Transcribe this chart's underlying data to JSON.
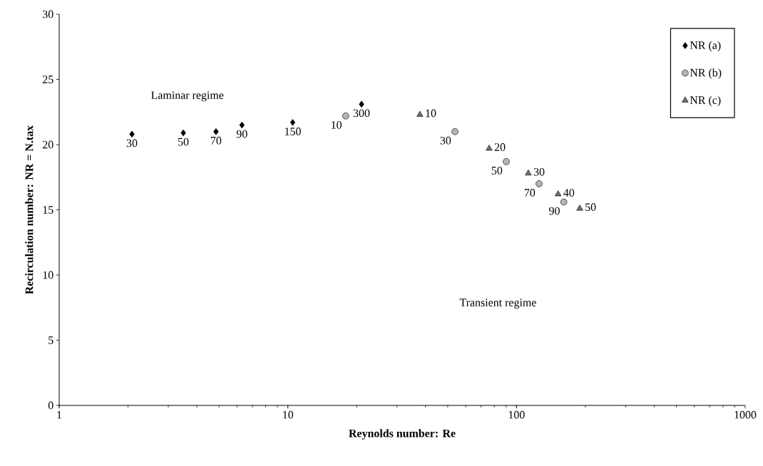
{
  "chart_data": {
    "type": "scatter",
    "xlabel": "Reynolds number: Re",
    "ylabel": "Recirculation number: NR = N.tax",
    "log": "x",
    "xlim": [
      1,
      1000
    ],
    "xticks": [
      1,
      10,
      100,
      1000
    ],
    "ylim": [
      0,
      30
    ],
    "yticks": [
      0,
      5,
      10,
      15,
      20,
      25,
      30
    ],
    "grid": false,
    "legend": "top right",
    "series": [
      {
        "name": "NR (a)",
        "color": "#000000",
        "marker": "diamond",
        "x": [
          2.08,
          3.49,
          4.85,
          6.3,
          10.5,
          21.0
        ],
        "values": [
          20.8,
          20.9,
          21.0,
          21.5,
          21.7,
          23.1
        ]
      },
      {
        "name": "NR (b)",
        "color": "#b4b4b4",
        "marker": "circle",
        "x": [
          17.9,
          53.8,
          90.2,
          125.5,
          161
        ],
        "values": [
          22.2,
          21.0,
          18.7,
          17.0,
          15.6
        ]
      },
      {
        "name": "NR (c)",
        "color": "#6e6e6e",
        "marker": "triangle",
        "x": [
          37.8,
          75.9,
          112.6,
          152,
          189
        ],
        "values": [
          22.3,
          19.7,
          17.8,
          16.2,
          15.1
        ]
      }
    ],
    "annotations": [
      "Laminar regime",
      "Transient regime",
      {
        "text": "30",
        "x": 2.08,
        "y": 20.8
      },
      {
        "text": "50",
        "x": 3.49,
        "y": 20.9
      },
      {
        "text": "70",
        "x": 4.85,
        "y": 21.0
      },
      {
        "text": "90",
        "x": 6.3,
        "y": 21.5
      },
      {
        "text": "150",
        "x": 10.5,
        "y": 21.7
      },
      {
        "text": "300",
        "x": 21.0,
        "y": 23.1
      },
      {
        "text": "10",
        "x": 17.9,
        "y": 22.2
      },
      {
        "text": "30",
        "x": 53.8,
        "y": 21.0
      },
      {
        "text": "50",
        "x": 90.2,
        "y": 18.7
      },
      {
        "text": "70",
        "x": 125.5,
        "y": 17.0
      },
      {
        "text": "90",
        "x": 161,
        "y": 15.6
      },
      {
        "text": "10",
        "x": 37.8,
        "y": 22.3
      },
      {
        "text": "20",
        "x": 75.9,
        "y": 19.7
      },
      {
        "text": "30",
        "x": 112.6,
        "y": 17.8
      },
      {
        "text": "40",
        "x": 152,
        "y": 16.2
      },
      {
        "text": "50",
        "x": 189,
        "y": 15.1
      }
    ]
  }
}
